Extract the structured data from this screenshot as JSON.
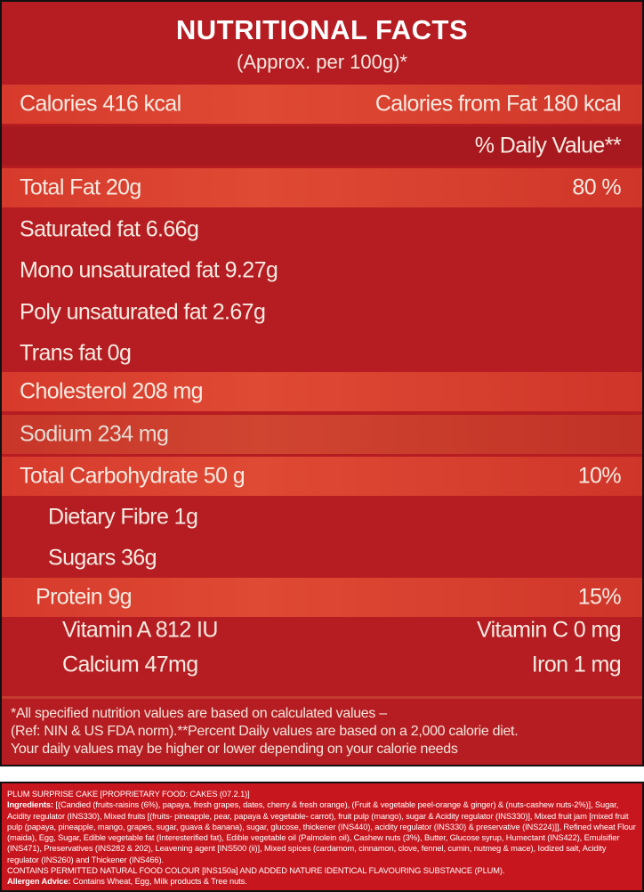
{
  "header": {
    "title": "NUTRITIONAL FACTS",
    "subtitle": "(Approx. per 100g)*"
  },
  "rows": {
    "calories": {
      "label": "Calories 416 kcal",
      "right": "Calories from Fat 180 kcal"
    },
    "dv_header": {
      "right": "% Daily Value**"
    },
    "total_fat": {
      "label": "Total Fat 20g",
      "right": "80 %"
    },
    "saturated": {
      "label": "Saturated fat 6.66g"
    },
    "mono": {
      "label": "Mono unsaturated fat 9.27g"
    },
    "poly": {
      "label": "Poly unsaturated fat 2.67g"
    },
    "trans": {
      "label": "Trans fat 0g"
    },
    "cholesterol": {
      "label": "Cholesterol  208 mg"
    },
    "sodium": {
      "label": "Sodium  234 mg"
    },
    "carbs": {
      "label": "Total Carbohydrate 50 g",
      "right": "10%"
    },
    "fibre": {
      "label": "Dietary Fibre 1g"
    },
    "sugars": {
      "label": "Sugars 36g"
    },
    "protein": {
      "label": "Protein 9g",
      "right": "15%"
    },
    "vitamin_a": {
      "label": "Vitamin A  812 IU",
      "right": "Vitamin C 0 mg"
    },
    "calcium": {
      "label": "Calcium  47mg",
      "right": "Iron 1 mg"
    }
  },
  "footnote": {
    "line1": "*All specified nutrition values are based on calculated values –",
    "line2": "(Ref: NIN & US FDA norm).**Percent Daily values are based on a 2,000 calorie diet.",
    "line3": "Your daily values may be higher or   lower depending on your calorie needs"
  },
  "ingredients": {
    "product": "PLUM SURPRISE CAKE [PROPRIETARY FOOD: CAKES (07.2.1)]",
    "label": "Ingredients:",
    "text": " [(Candied (fruits-raisins (6%), papaya, fresh grapes, dates, cherry & fresh orange), (Fruit & vegetable peel-orange & ginger) & (nuts-cashew nuts-2%)], Sugar, Acidity regulator (INS330), Mixed fruits [(fruits- pineapple, pear, papaya & vegetable- carrot), fruit pulp (mango), sugar & Acidity regulator (INS330)], Mixed fruit jam [mixed fruit pulp (papaya, pineapple, mango, grapes, sugar, guava & banana), sugar, glucose, thickener (INS440), acidity regulator (INS330) & preservative (INS224)]], Refined wheat Flour (maida), Egg, Sugar, Edible vegetable fat (Interesterified fat), Edible vegetable oil (Palmolein oil), Cashew nuts (3%), Butter, Glucose syrup, Humectant (INS422), Emulsifier (INS471), Preservatives (INS282 & 202), Leavening agent [INS500 (ii)], Mixed spices (cardamom, cinnamon, clove, fennel, cumin, nutmeg & mace), Iodized salt, Acidity regulator (INS260) and Thickener (INS466).",
    "colour_note": "CONTAINS PERMITTED NATURAL FOOD COLOUR [INS150a] AND ADDED NATURE IDENTICAL FLAVOURING SUBSTANCE (PLUM).",
    "allergen_label": "Allergen Advice:",
    "allergen_text": " Contains Wheat, Egg, Milk products & Tree nuts."
  },
  "colors": {
    "panel": "#b51d22",
    "band": "#d63a2c",
    "text": "#f7ebe2",
    "ingredients_panel": "#c8161e"
  }
}
